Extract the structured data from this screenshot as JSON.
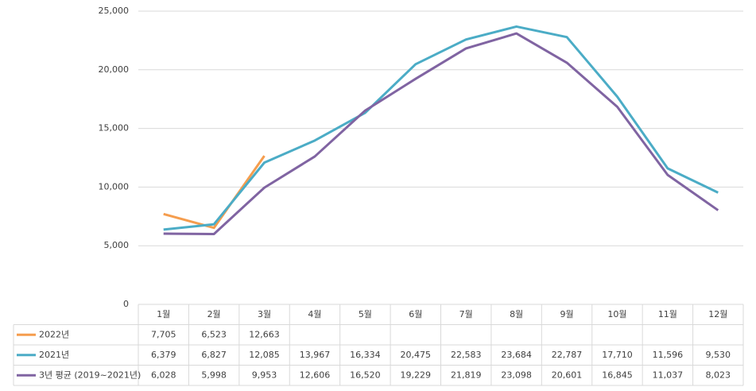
{
  "chart_data": {
    "type": "line",
    "categories": [
      "1월",
      "2월",
      "3월",
      "4월",
      "5월",
      "6월",
      "7월",
      "8월",
      "9월",
      "10월",
      "11월",
      "12월"
    ],
    "series": [
      {
        "name": "2022년",
        "color": "#f59d4e",
        "values": [
          7705,
          6523,
          12663,
          null,
          null,
          null,
          null,
          null,
          null,
          null,
          null,
          null
        ],
        "value_labels": [
          "7,705",
          "6,523",
          "12,663",
          null,
          null,
          null,
          null,
          null,
          null,
          null,
          null,
          null
        ]
      },
      {
        "name": "2021년",
        "color": "#4bacc6",
        "values": [
          6379,
          6827,
          12085,
          13967,
          16334,
          20475,
          22583,
          23684,
          22787,
          17710,
          11596,
          9530
        ],
        "value_labels": [
          "6,379",
          "6,827",
          "12,085",
          "13,967",
          "16,334",
          "20,475",
          "22,583",
          "23,684",
          "22,787",
          "17,710",
          "11,596",
          "9,530"
        ]
      },
      {
        "name": "3년 평균 (2019~2021년)",
        "color": "#8064a2",
        "values": [
          6028,
          5998,
          9953,
          12606,
          16520,
          19229,
          21819,
          23098,
          20601,
          16845,
          11037,
          8023
        ],
        "value_labels": [
          "6,028",
          "5,998",
          "9,953",
          "12,606",
          "16,520",
          "19,229",
          "21,819",
          "23,098",
          "20,601",
          "16,845",
          "11,037",
          "8,023"
        ]
      }
    ],
    "ylim": [
      0,
      25000
    ],
    "yticks": [
      0,
      {
        "value": 5000,
        "label": "5,000"
      },
      {
        "value": 10000,
        "label": "10,000"
      },
      {
        "value": 15000,
        "label": "15,000"
      },
      {
        "value": 20000,
        "label": "20,000"
      },
      {
        "value": 25000,
        "label": "25,000"
      }
    ],
    "grid": true
  }
}
